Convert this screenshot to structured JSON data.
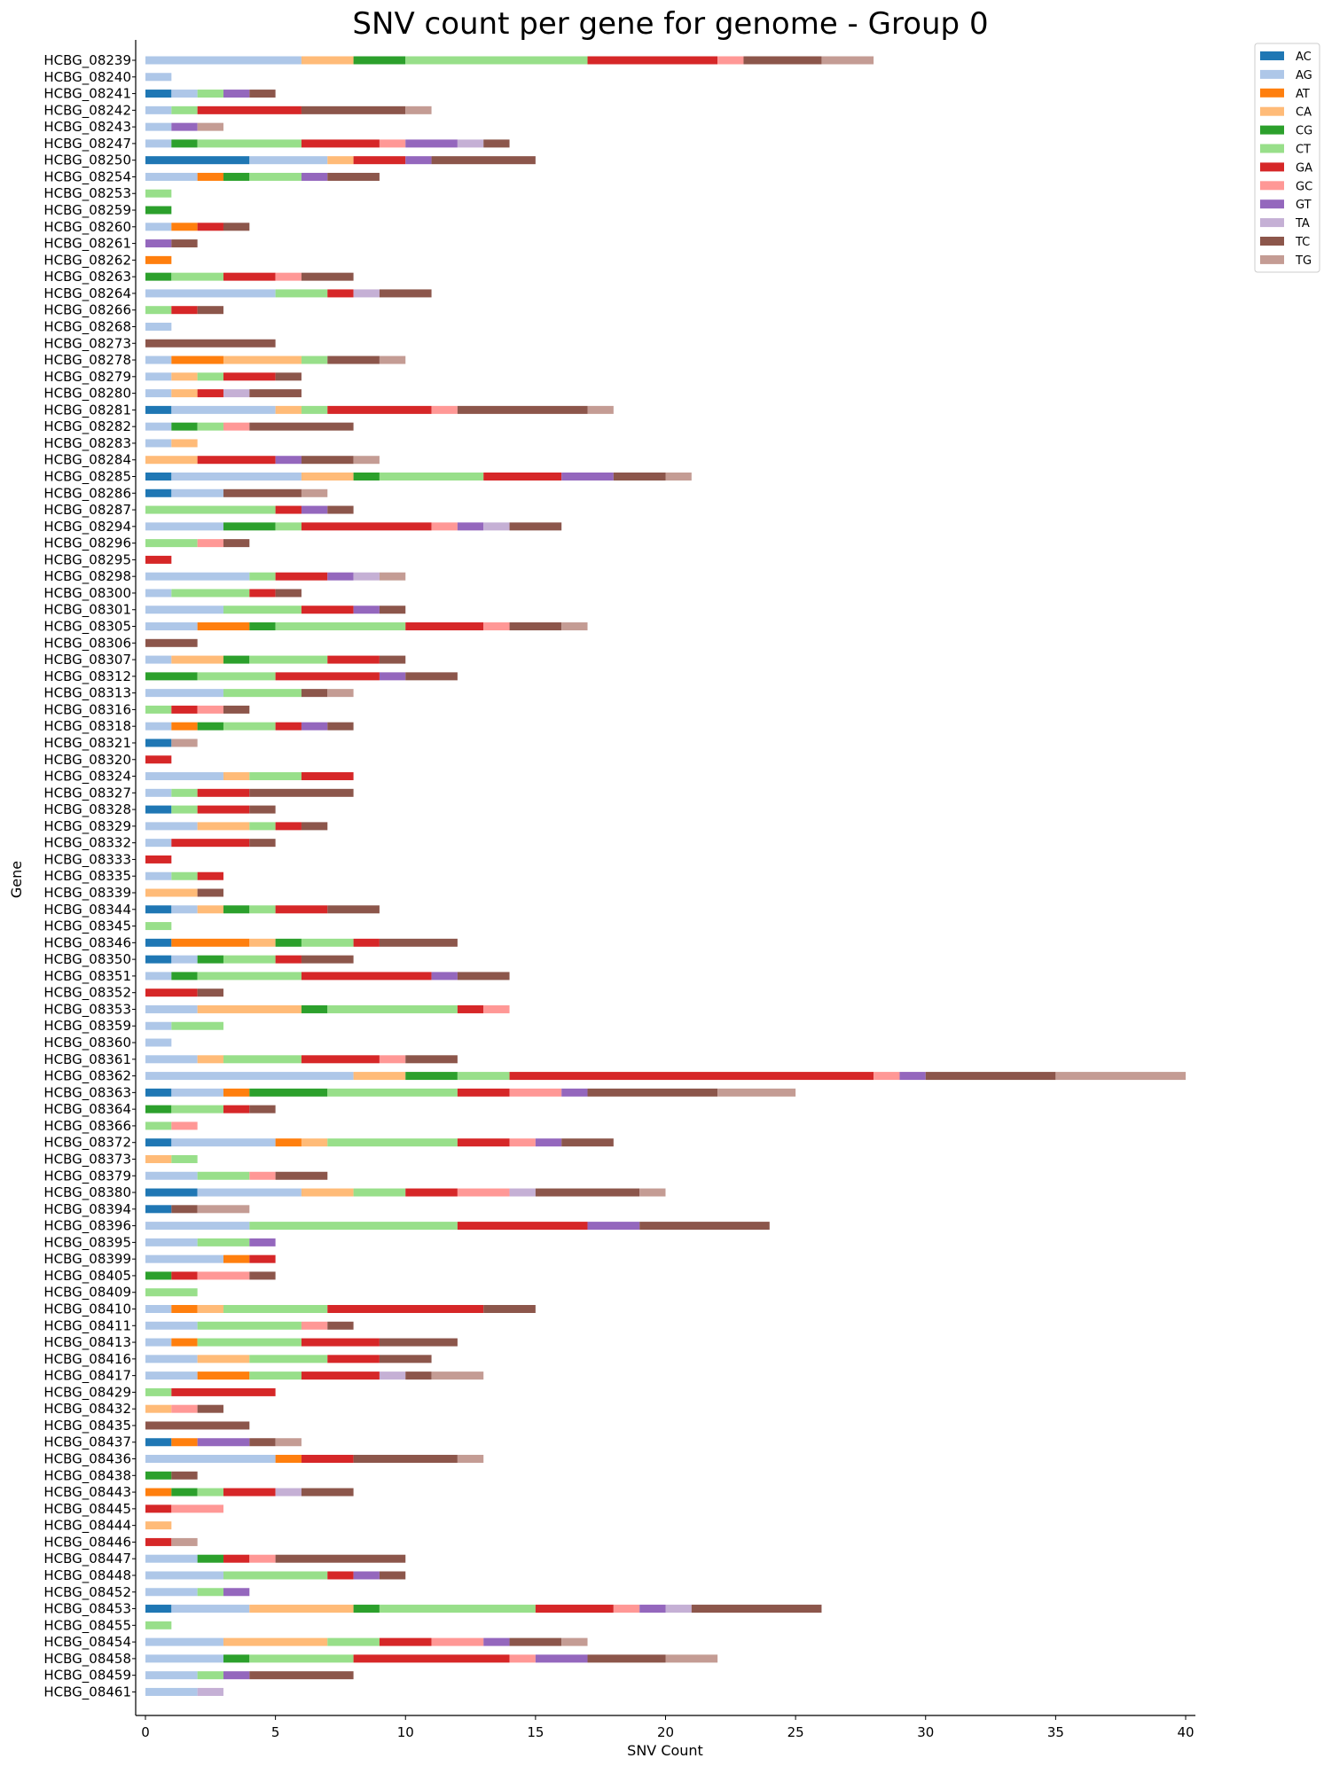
{
  "chart_data": {
    "type": "bar",
    "orientation": "horizontal",
    "stacked": true,
    "title": "SNV count per gene for genome - Group 0",
    "xlabel": "SNV Count",
    "ylabel": "Gene",
    "xlim": [
      0,
      40
    ],
    "xticks": [
      0,
      5,
      10,
      15,
      20,
      25,
      30,
      35,
      40
    ],
    "grid": false,
    "legend_position": "top-right",
    "colors": {
      "AC": "#1f77b4",
      "AG": "#aec7e8",
      "AT": "#ff7f0e",
      "CA": "#ffbb78",
      "CG": "#2ca02c",
      "CT": "#98df8a",
      "GA": "#d62728",
      "GC": "#ff9896",
      "GT": "#9467bd",
      "TA": "#c5b0d5",
      "TC": "#8c564b",
      "TG": "#c49c94"
    },
    "series_order": [
      "AC",
      "AG",
      "AT",
      "CA",
      "CG",
      "CT",
      "GA",
      "GC",
      "GT",
      "TA",
      "TC",
      "TG"
    ],
    "genes": [
      {
        "gene": "HCBG_08239",
        "counts": {
          "AG": 6,
          "CA": 2,
          "CG": 2,
          "CT": 7,
          "GA": 5,
          "GC": 1,
          "TC": 3,
          "TG": 2
        }
      },
      {
        "gene": "HCBG_08240",
        "counts": {
          "AG": 1
        }
      },
      {
        "gene": "HCBG_08241",
        "counts": {
          "AC": 1,
          "AG": 1,
          "CT": 1,
          "GT": 1,
          "TC": 1
        }
      },
      {
        "gene": "HCBG_08242",
        "counts": {
          "AG": 1,
          "CT": 1,
          "GA": 4,
          "TC": 4,
          "TG": 1
        }
      },
      {
        "gene": "HCBG_08243",
        "counts": {
          "AG": 1,
          "GT": 1,
          "TG": 1
        }
      },
      {
        "gene": "HCBG_08247",
        "counts": {
          "AG": 1,
          "CG": 1,
          "CT": 4,
          "GA": 3,
          "GC": 1,
          "GT": 2,
          "TA": 1,
          "TC": 1
        }
      },
      {
        "gene": "HCBG_08250",
        "counts": {
          "AC": 4,
          "AG": 3,
          "CA": 1,
          "GA": 2,
          "GT": 1,
          "TC": 4
        }
      },
      {
        "gene": "HCBG_08254",
        "counts": {
          "AG": 2,
          "AT": 1,
          "CG": 1,
          "CT": 2,
          "GT": 1,
          "TC": 2
        }
      },
      {
        "gene": "HCBG_08253",
        "counts": {
          "CT": 1
        }
      },
      {
        "gene": "HCBG_08259",
        "counts": {
          "CG": 1
        }
      },
      {
        "gene": "HCBG_08260",
        "counts": {
          "AG": 1,
          "AT": 1,
          "GA": 1,
          "TC": 1
        }
      },
      {
        "gene": "HCBG_08261",
        "counts": {
          "GT": 1,
          "TC": 1
        }
      },
      {
        "gene": "HCBG_08262",
        "counts": {
          "AT": 1
        }
      },
      {
        "gene": "HCBG_08263",
        "counts": {
          "CG": 1,
          "CT": 2,
          "GA": 2,
          "GC": 1,
          "TC": 2
        }
      },
      {
        "gene": "HCBG_08264",
        "counts": {
          "AG": 5,
          "CT": 2,
          "GA": 1,
          "TA": 1,
          "TC": 2
        }
      },
      {
        "gene": "HCBG_08266",
        "counts": {
          "CT": 1,
          "GA": 1,
          "TC": 1
        }
      },
      {
        "gene": "HCBG_08268",
        "counts": {
          "AG": 1
        }
      },
      {
        "gene": "HCBG_08273",
        "counts": {
          "TC": 5
        }
      },
      {
        "gene": "HCBG_08278",
        "counts": {
          "AG": 1,
          "AT": 2,
          "CA": 3,
          "CT": 1,
          "TC": 2,
          "TG": 1
        }
      },
      {
        "gene": "HCBG_08279",
        "counts": {
          "AG": 1,
          "CA": 1,
          "CT": 1,
          "GA": 2,
          "TC": 1
        }
      },
      {
        "gene": "HCBG_08280",
        "counts": {
          "AG": 1,
          "CA": 1,
          "GA": 1,
          "TA": 1,
          "TC": 2
        }
      },
      {
        "gene": "HCBG_08281",
        "counts": {
          "AC": 1,
          "AG": 4,
          "CA": 1,
          "CT": 1,
          "GA": 4,
          "GC": 1,
          "TC": 5,
          "TG": 1
        }
      },
      {
        "gene": "HCBG_08282",
        "counts": {
          "AG": 1,
          "CG": 1,
          "CT": 1,
          "GC": 1,
          "TC": 4
        }
      },
      {
        "gene": "HCBG_08283",
        "counts": {
          "AG": 1,
          "CA": 1
        }
      },
      {
        "gene": "HCBG_08284",
        "counts": {
          "CA": 2,
          "GA": 3,
          "GT": 1,
          "TC": 2,
          "TG": 1
        }
      },
      {
        "gene": "HCBG_08285",
        "counts": {
          "AC": 1,
          "AG": 5,
          "CA": 2,
          "CG": 1,
          "CT": 4,
          "GA": 3,
          "GT": 2,
          "TC": 2,
          "TG": 1
        }
      },
      {
        "gene": "HCBG_08286",
        "counts": {
          "AC": 1,
          "AG": 2,
          "TC": 3,
          "TG": 1
        }
      },
      {
        "gene": "HCBG_08287",
        "counts": {
          "CT": 5,
          "GA": 1,
          "GT": 1,
          "TC": 1
        }
      },
      {
        "gene": "HCBG_08294",
        "counts": {
          "AG": 3,
          "CG": 2,
          "CT": 1,
          "GA": 5,
          "GC": 1,
          "GT": 1,
          "TA": 1,
          "TC": 2
        }
      },
      {
        "gene": "HCBG_08296",
        "counts": {
          "CT": 2,
          "GC": 1,
          "TC": 1
        }
      },
      {
        "gene": "HCBG_08295",
        "counts": {
          "GA": 1
        }
      },
      {
        "gene": "HCBG_08298",
        "counts": {
          "AG": 4,
          "CT": 1,
          "GA": 2,
          "GT": 1,
          "TA": 1,
          "TG": 1
        }
      },
      {
        "gene": "HCBG_08300",
        "counts": {
          "AG": 1,
          "CT": 3,
          "GA": 1,
          "TC": 1
        }
      },
      {
        "gene": "HCBG_08301",
        "counts": {
          "AG": 3,
          "CT": 3,
          "GA": 2,
          "GT": 1,
          "TC": 1
        }
      },
      {
        "gene": "HCBG_08305",
        "counts": {
          "AG": 2,
          "AT": 2,
          "CG": 1,
          "CT": 5,
          "GA": 3,
          "GC": 1,
          "TC": 2,
          "TG": 1
        }
      },
      {
        "gene": "HCBG_08306",
        "counts": {
          "TC": 2
        }
      },
      {
        "gene": "HCBG_08307",
        "counts": {
          "AG": 1,
          "CA": 2,
          "CG": 1,
          "CT": 3,
          "GA": 2,
          "TC": 1
        }
      },
      {
        "gene": "HCBG_08312",
        "counts": {
          "CG": 2,
          "CT": 3,
          "GA": 4,
          "GT": 1,
          "TC": 2
        }
      },
      {
        "gene": "HCBG_08313",
        "counts": {
          "AG": 3,
          "CT": 3,
          "TC": 1,
          "TG": 1
        }
      },
      {
        "gene": "HCBG_08316",
        "counts": {
          "CT": 1,
          "GA": 1,
          "GC": 1,
          "TC": 1
        }
      },
      {
        "gene": "HCBG_08318",
        "counts": {
          "AG": 1,
          "AT": 1,
          "CG": 1,
          "CT": 2,
          "GA": 1,
          "GT": 1,
          "TC": 1
        }
      },
      {
        "gene": "HCBG_08321",
        "counts": {
          "AC": 1,
          "TG": 1
        }
      },
      {
        "gene": "HCBG_08320",
        "counts": {
          "GA": 1
        }
      },
      {
        "gene": "HCBG_08324",
        "counts": {
          "AG": 3,
          "CA": 1,
          "CT": 2,
          "GA": 2
        }
      },
      {
        "gene": "HCBG_08327",
        "counts": {
          "AG": 1,
          "CT": 1,
          "GA": 2,
          "TC": 4
        }
      },
      {
        "gene": "HCBG_08328",
        "counts": {
          "AC": 1,
          "CT": 1,
          "GA": 2,
          "TC": 1
        }
      },
      {
        "gene": "HCBG_08329",
        "counts": {
          "AG": 2,
          "CA": 2,
          "CT": 1,
          "GA": 1,
          "TC": 1
        }
      },
      {
        "gene": "HCBG_08332",
        "counts": {
          "AG": 1,
          "GA": 3,
          "TC": 1
        }
      },
      {
        "gene": "HCBG_08333",
        "counts": {
          "GA": 1
        }
      },
      {
        "gene": "HCBG_08335",
        "counts": {
          "AG": 1,
          "CT": 1,
          "GA": 1
        }
      },
      {
        "gene": "HCBG_08339",
        "counts": {
          "CA": 2,
          "TC": 1
        }
      },
      {
        "gene": "HCBG_08344",
        "counts": {
          "AC": 1,
          "AG": 1,
          "CA": 1,
          "CG": 1,
          "CT": 1,
          "GA": 2,
          "TC": 2
        }
      },
      {
        "gene": "HCBG_08345",
        "counts": {
          "CT": 1
        }
      },
      {
        "gene": "HCBG_08346",
        "counts": {
          "AC": 1,
          "AT": 3,
          "CA": 1,
          "CG": 1,
          "CT": 2,
          "GA": 1,
          "TC": 3
        }
      },
      {
        "gene": "HCBG_08350",
        "counts": {
          "AC": 1,
          "AG": 1,
          "CG": 1,
          "CT": 2,
          "GA": 1,
          "TC": 2
        }
      },
      {
        "gene": "HCBG_08351",
        "counts": {
          "AG": 1,
          "CG": 1,
          "CT": 4,
          "GA": 5,
          "GT": 1,
          "TC": 2
        }
      },
      {
        "gene": "HCBG_08352",
        "counts": {
          "GA": 2,
          "TC": 1
        }
      },
      {
        "gene": "HCBG_08353",
        "counts": {
          "AG": 2,
          "CA": 4,
          "CG": 1,
          "CT": 5,
          "GA": 1,
          "GC": 1
        }
      },
      {
        "gene": "HCBG_08359",
        "counts": {
          "AG": 1,
          "CT": 2
        }
      },
      {
        "gene": "HCBG_08360",
        "counts": {
          "AG": 1
        }
      },
      {
        "gene": "HCBG_08361",
        "counts": {
          "AG": 2,
          "CA": 1,
          "CT": 3,
          "GA": 3,
          "GC": 1,
          "TC": 2
        }
      },
      {
        "gene": "HCBG_08362",
        "counts": {
          "AG": 8,
          "CA": 2,
          "CG": 2,
          "CT": 2,
          "GA": 14,
          "GC": 1,
          "GT": 1,
          "TC": 5,
          "TG": 5
        }
      },
      {
        "gene": "HCBG_08363",
        "counts": {
          "AC": 1,
          "AG": 2,
          "AT": 1,
          "CG": 3,
          "CT": 5,
          "GA": 2,
          "GC": 2,
          "GT": 1,
          "TC": 5,
          "TG": 3
        }
      },
      {
        "gene": "HCBG_08364",
        "counts": {
          "CG": 1,
          "CT": 2,
          "GA": 1,
          "TC": 1
        }
      },
      {
        "gene": "HCBG_08366",
        "counts": {
          "CT": 1,
          "GC": 1
        }
      },
      {
        "gene": "HCBG_08372",
        "counts": {
          "AC": 1,
          "AG": 4,
          "AT": 1,
          "CA": 1,
          "CT": 5,
          "GA": 2,
          "GC": 1,
          "GT": 1,
          "TC": 2
        }
      },
      {
        "gene": "HCBG_08373",
        "counts": {
          "CA": 1,
          "CT": 1
        }
      },
      {
        "gene": "HCBG_08379",
        "counts": {
          "AG": 2,
          "CT": 2,
          "GC": 1,
          "TC": 2
        }
      },
      {
        "gene": "HCBG_08380",
        "counts": {
          "AC": 2,
          "AG": 4,
          "CA": 2,
          "CT": 2,
          "GA": 2,
          "GC": 2,
          "TA": 1,
          "TC": 4,
          "TG": 1
        }
      },
      {
        "gene": "HCBG_08394",
        "counts": {
          "AC": 1,
          "TC": 1,
          "TG": 2
        }
      },
      {
        "gene": "HCBG_08396",
        "counts": {
          "AG": 4,
          "CT": 8,
          "GA": 5,
          "GT": 2,
          "TC": 5
        }
      },
      {
        "gene": "HCBG_08395",
        "counts": {
          "AG": 2,
          "CT": 2,
          "GT": 1
        }
      },
      {
        "gene": "HCBG_08399",
        "counts": {
          "AG": 3,
          "AT": 1,
          "GA": 1
        }
      },
      {
        "gene": "HCBG_08405",
        "counts": {
          "CG": 1,
          "GA": 1,
          "GC": 2,
          "TC": 1
        }
      },
      {
        "gene": "HCBG_08409",
        "counts": {
          "CT": 2
        }
      },
      {
        "gene": "HCBG_08410",
        "counts": {
          "AG": 1,
          "AT": 1,
          "CA": 1,
          "CT": 4,
          "GA": 6,
          "TC": 2
        }
      },
      {
        "gene": "HCBG_08411",
        "counts": {
          "AG": 2,
          "CT": 4,
          "GC": 1,
          "TC": 1
        }
      },
      {
        "gene": "HCBG_08413",
        "counts": {
          "AG": 1,
          "AT": 1,
          "CT": 4,
          "GA": 3,
          "TC": 3
        }
      },
      {
        "gene": "HCBG_08416",
        "counts": {
          "AG": 2,
          "CA": 2,
          "CT": 3,
          "GA": 2,
          "TC": 2
        }
      },
      {
        "gene": "HCBG_08417",
        "counts": {
          "AG": 2,
          "AT": 2,
          "CT": 2,
          "GA": 3,
          "TA": 1,
          "TC": 1,
          "TG": 2
        }
      },
      {
        "gene": "HCBG_08429",
        "counts": {
          "CT": 1,
          "GA": 4
        }
      },
      {
        "gene": "HCBG_08432",
        "counts": {
          "CA": 1,
          "GC": 1,
          "TC": 1
        }
      },
      {
        "gene": "HCBG_08435",
        "counts": {
          "TC": 4
        }
      },
      {
        "gene": "HCBG_08437",
        "counts": {
          "AC": 1,
          "AT": 1,
          "GT": 2,
          "TC": 1,
          "TG": 1
        }
      },
      {
        "gene": "HCBG_08436",
        "counts": {
          "AG": 5,
          "AT": 1,
          "GA": 2,
          "TC": 4,
          "TG": 1
        }
      },
      {
        "gene": "HCBG_08438",
        "counts": {
          "CG": 1,
          "TC": 1
        }
      },
      {
        "gene": "HCBG_08443",
        "counts": {
          "AT": 1,
          "CG": 1,
          "CT": 1,
          "GA": 2,
          "TA": 1,
          "TC": 2
        }
      },
      {
        "gene": "HCBG_08445",
        "counts": {
          "GA": 1,
          "GC": 2
        }
      },
      {
        "gene": "HCBG_08444",
        "counts": {
          "CA": 1
        }
      },
      {
        "gene": "HCBG_08446",
        "counts": {
          "GA": 1,
          "TG": 1
        }
      },
      {
        "gene": "HCBG_08447",
        "counts": {
          "AG": 2,
          "CG": 1,
          "GA": 1,
          "GC": 1,
          "TC": 5
        }
      },
      {
        "gene": "HCBG_08448",
        "counts": {
          "AG": 3,
          "CT": 4,
          "GA": 1,
          "GT": 1,
          "TC": 1
        }
      },
      {
        "gene": "HCBG_08452",
        "counts": {
          "AG": 2,
          "CT": 1,
          "GT": 1
        }
      },
      {
        "gene": "HCBG_08453",
        "counts": {
          "AC": 1,
          "AG": 3,
          "CA": 4,
          "CG": 1,
          "CT": 6,
          "GA": 3,
          "GC": 1,
          "GT": 1,
          "TA": 1,
          "TC": 5
        }
      },
      {
        "gene": "HCBG_08455",
        "counts": {
          "CT": 1
        }
      },
      {
        "gene": "HCBG_08454",
        "counts": {
          "AG": 3,
          "CA": 4,
          "CT": 2,
          "GA": 2,
          "GC": 2,
          "GT": 1,
          "TC": 2,
          "TG": 1
        }
      },
      {
        "gene": "HCBG_08458",
        "counts": {
          "AG": 3,
          "CG": 1,
          "CT": 4,
          "GA": 6,
          "GC": 1,
          "GT": 2,
          "TC": 3,
          "TG": 2
        }
      },
      {
        "gene": "HCBG_08459",
        "counts": {
          "AG": 2,
          "CT": 1,
          "GT": 1,
          "TC": 4
        }
      },
      {
        "gene": "HCBG_08461",
        "counts": {
          "AG": 2,
          "TA": 1
        }
      }
    ]
  }
}
